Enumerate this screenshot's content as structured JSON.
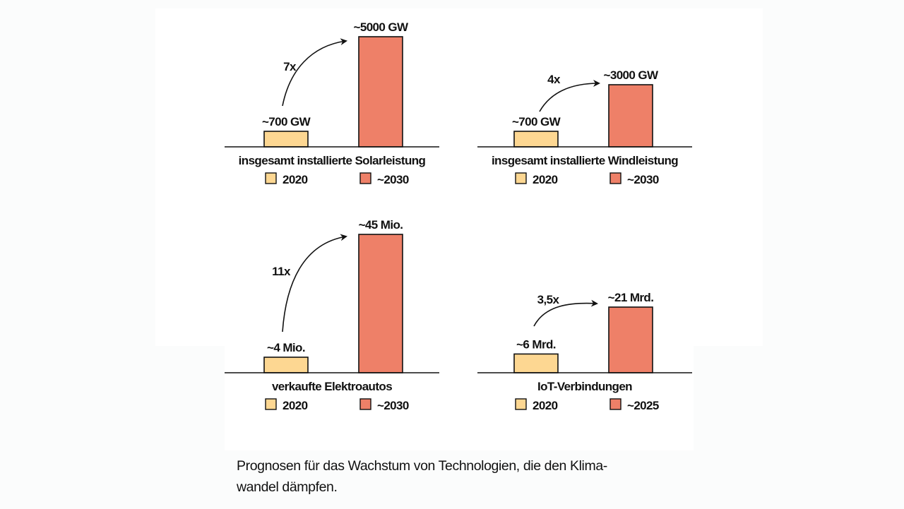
{
  "colors": {
    "bar_2020": "#fdd792",
    "bar_future": "#ee8068",
    "outline": "#111111",
    "axis": "#111111"
  },
  "chart_data": [
    {
      "type": "bar",
      "title": "insgesamt installierte Solarleistung",
      "categories": [
        "2020",
        "~2030"
      ],
      "values": [
        700,
        5000
      ],
      "unit": "GW",
      "data_labels": [
        "~700 GW",
        "~5000 GW"
      ],
      "growth_label": "7x",
      "legend": [
        {
          "name": "2020",
          "color": "#fdd792"
        },
        {
          "name": "~2030",
          "color": "#ee8068"
        }
      ],
      "legend_position": "bottom"
    },
    {
      "type": "bar",
      "title": "insgesamt installierte Windleistung",
      "categories": [
        "2020",
        "~2030"
      ],
      "values": [
        700,
        3000
      ],
      "unit": "GW",
      "data_labels": [
        "~700 GW",
        "~3000 GW"
      ],
      "growth_label": "4x",
      "legend": [
        {
          "name": "2020",
          "color": "#fdd792"
        },
        {
          "name": "~2030",
          "color": "#ee8068"
        }
      ],
      "legend_position": "bottom"
    },
    {
      "type": "bar",
      "title": "verkaufte Elektroautos",
      "categories": [
        "2020",
        "~2030"
      ],
      "values": [
        4,
        45
      ],
      "unit": "Mio.",
      "data_labels": [
        "~4 Mio.",
        "~45 Mio."
      ],
      "growth_label": "11x",
      "legend": [
        {
          "name": "2020",
          "color": "#fdd792"
        },
        {
          "name": "~2030",
          "color": "#ee8068"
        }
      ],
      "legend_position": "bottom"
    },
    {
      "type": "bar",
      "title": "IoT-Verbindungen",
      "categories": [
        "2020",
        "~2025"
      ],
      "values": [
        6,
        21
      ],
      "unit": "Mrd.",
      "data_labels": [
        "~6 Mrd.",
        "~21 Mrd."
      ],
      "growth_label": "3,5x",
      "legend": [
        {
          "name": "2020",
          "color": "#fdd792"
        },
        {
          "name": "~2025",
          "color": "#ee8068"
        }
      ],
      "legend_position": "bottom"
    }
  ],
  "caption": "Prognosen für das Wachstum von Technologien, die den Klima-wandel dämpfen.",
  "caption_lines": [
    "Prognosen für das Wachstum von Technologien, die den Klima-",
    "wandel dämpfen."
  ]
}
